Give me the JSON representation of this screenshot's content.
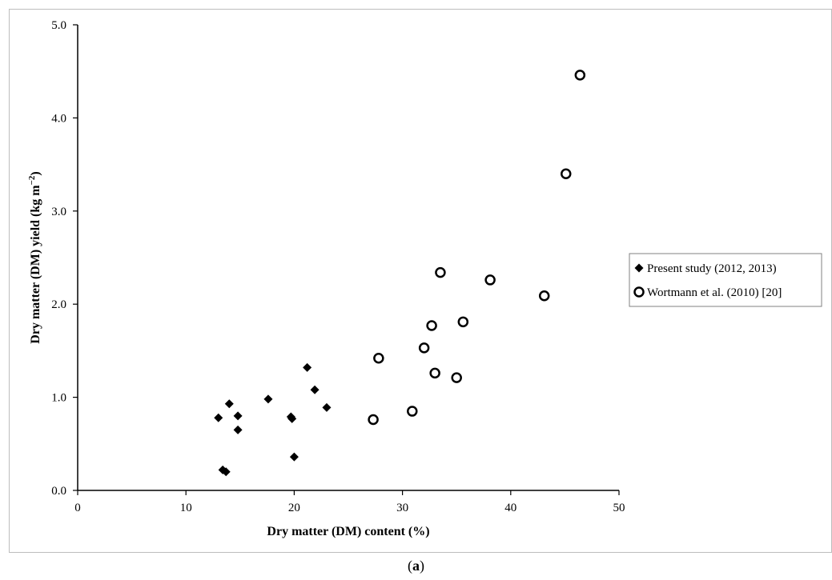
{
  "caption": {
    "open": "(",
    "letter": "a",
    "close": ")"
  },
  "chart_data": {
    "type": "scatter",
    "xlabel": "Dry matter (DM) content (%)",
    "ylabel_main": "Dry matter (DM) yield (kg m",
    "ylabel_sup": "−2",
    "ylabel_close": ")",
    "xlim": [
      0,
      50
    ],
    "ylim": [
      0,
      5
    ],
    "x_ticks": [
      {
        "value": 0,
        "label": "0"
      },
      {
        "value": 10,
        "label": "10"
      },
      {
        "value": 20,
        "label": "20"
      },
      {
        "value": 30,
        "label": "30"
      },
      {
        "value": 40,
        "label": "40"
      },
      {
        "value": 50,
        "label": "50"
      }
    ],
    "y_ticks": [
      {
        "value": 0,
        "label": "0.0"
      },
      {
        "value": 1,
        "label": "1.0"
      },
      {
        "value": 2,
        "label": "2.0"
      },
      {
        "value": 3,
        "label": "3.0"
      },
      {
        "value": 4,
        "label": "4.0"
      },
      {
        "value": 5,
        "label": "5.0"
      }
    ],
    "grid": false,
    "legend_position": "right",
    "series": [
      {
        "name": "Present study (2012, 2013)",
        "marker": "diamond",
        "color": "#000000",
        "points": [
          {
            "x": 13.0,
            "y": 0.78
          },
          {
            "x": 14.0,
            "y": 0.93
          },
          {
            "x": 14.8,
            "y": 0.8
          },
          {
            "x": 14.8,
            "y": 0.65
          },
          {
            "x": 13.4,
            "y": 0.22
          },
          {
            "x": 13.7,
            "y": 0.2
          },
          {
            "x": 17.6,
            "y": 0.98
          },
          {
            "x": 19.7,
            "y": 0.79
          },
          {
            "x": 19.8,
            "y": 0.77
          },
          {
            "x": 20.0,
            "y": 0.36
          },
          {
            "x": 21.2,
            "y": 1.32
          },
          {
            "x": 21.9,
            "y": 1.08
          },
          {
            "x": 23.0,
            "y": 0.89
          }
        ]
      },
      {
        "name": "Wortmann et al. (2010) [20]",
        "marker": "open-circle",
        "color": "#000000",
        "points": [
          {
            "x": 27.3,
            "y": 0.76
          },
          {
            "x": 27.8,
            "y": 1.42
          },
          {
            "x": 30.9,
            "y": 0.85
          },
          {
            "x": 32.0,
            "y": 1.53
          },
          {
            "x": 32.7,
            "y": 1.77
          },
          {
            "x": 33.0,
            "y": 1.26
          },
          {
            "x": 33.5,
            "y": 2.34
          },
          {
            "x": 35.0,
            "y": 1.21
          },
          {
            "x": 35.6,
            "y": 1.81
          },
          {
            "x": 38.1,
            "y": 2.26
          },
          {
            "x": 43.1,
            "y": 2.09
          },
          {
            "x": 45.1,
            "y": 3.4
          },
          {
            "x": 46.4,
            "y": 4.46
          }
        ]
      }
    ]
  }
}
